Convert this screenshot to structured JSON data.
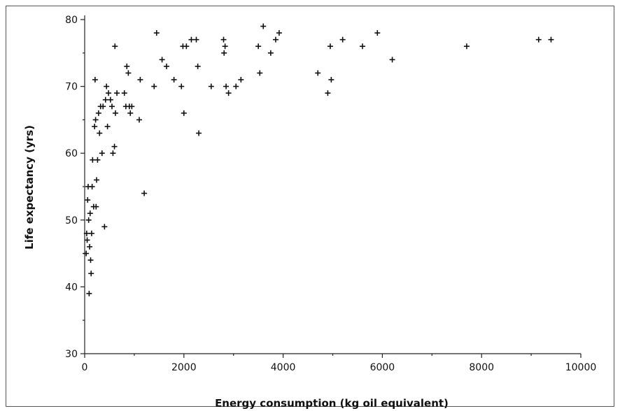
{
  "chart_data": {
    "type": "scatter",
    "xlabel": "Energy consumption (kg oil equivalent)",
    "ylabel": "Life expectancy (yrs)",
    "xlim": [
      0,
      10000
    ],
    "ylim": [
      30,
      80
    ],
    "x_ticks": [
      "0",
      "2000",
      "4000",
      "6000",
      "8000",
      "10000"
    ],
    "y_ticks": [
      "30",
      "40",
      "50",
      "60",
      "70",
      "80"
    ],
    "grid": false,
    "marker": "plus",
    "points": [
      [
        30,
        45
      ],
      [
        40,
        48
      ],
      [
        50,
        47
      ],
      [
        60,
        53
      ],
      [
        70,
        55
      ],
      [
        80,
        50
      ],
      [
        90,
        39
      ],
      [
        100,
        46
      ],
      [
        110,
        51
      ],
      [
        120,
        44
      ],
      [
        130,
        42
      ],
      [
        140,
        48
      ],
      [
        150,
        55
      ],
      [
        160,
        59
      ],
      [
        180,
        52
      ],
      [
        200,
        64
      ],
      [
        210,
        71
      ],
      [
        220,
        65
      ],
      [
        230,
        52
      ],
      [
        240,
        56
      ],
      [
        260,
        59
      ],
      [
        280,
        66
      ],
      [
        300,
        63
      ],
      [
        320,
        67
      ],
      [
        350,
        60
      ],
      [
        370,
        67
      ],
      [
        400,
        49
      ],
      [
        420,
        68
      ],
      [
        440,
        70
      ],
      [
        460,
        64
      ],
      [
        480,
        69
      ],
      [
        520,
        68
      ],
      [
        550,
        67
      ],
      [
        570,
        60
      ],
      [
        600,
        61
      ],
      [
        610,
        76
      ],
      [
        620,
        66
      ],
      [
        650,
        69
      ],
      [
        800,
        69
      ],
      [
        830,
        67
      ],
      [
        850,
        73
      ],
      [
        880,
        72
      ],
      [
        900,
        67
      ],
      [
        920,
        66
      ],
      [
        950,
        67
      ],
      [
        1100,
        65
      ],
      [
        1120,
        71
      ],
      [
        1200,
        54
      ],
      [
        1400,
        70
      ],
      [
        1450,
        78
      ],
      [
        1560,
        74
      ],
      [
        1650,
        73
      ],
      [
        1800,
        71
      ],
      [
        1950,
        70
      ],
      [
        1980,
        76
      ],
      [
        2000,
        66
      ],
      [
        2050,
        76
      ],
      [
        2150,
        77
      ],
      [
        2250,
        77
      ],
      [
        2280,
        73
      ],
      [
        2300,
        63
      ],
      [
        2550,
        70
      ],
      [
        2800,
        77
      ],
      [
        2810,
        75
      ],
      [
        2830,
        76
      ],
      [
        2850,
        70
      ],
      [
        2900,
        69
      ],
      [
        3050,
        70
      ],
      [
        3150,
        71
      ],
      [
        3500,
        76
      ],
      [
        3530,
        72
      ],
      [
        3600,
        79
      ],
      [
        3750,
        75
      ],
      [
        3850,
        77
      ],
      [
        3920,
        78
      ],
      [
        4700,
        72
      ],
      [
        4900,
        69
      ],
      [
        4950,
        76
      ],
      [
        4970,
        71
      ],
      [
        5200,
        77
      ],
      [
        5600,
        76
      ],
      [
        5900,
        78
      ],
      [
        6200,
        74
      ],
      [
        7700,
        76
      ],
      [
        9150,
        77
      ],
      [
        9400,
        77
      ]
    ]
  }
}
